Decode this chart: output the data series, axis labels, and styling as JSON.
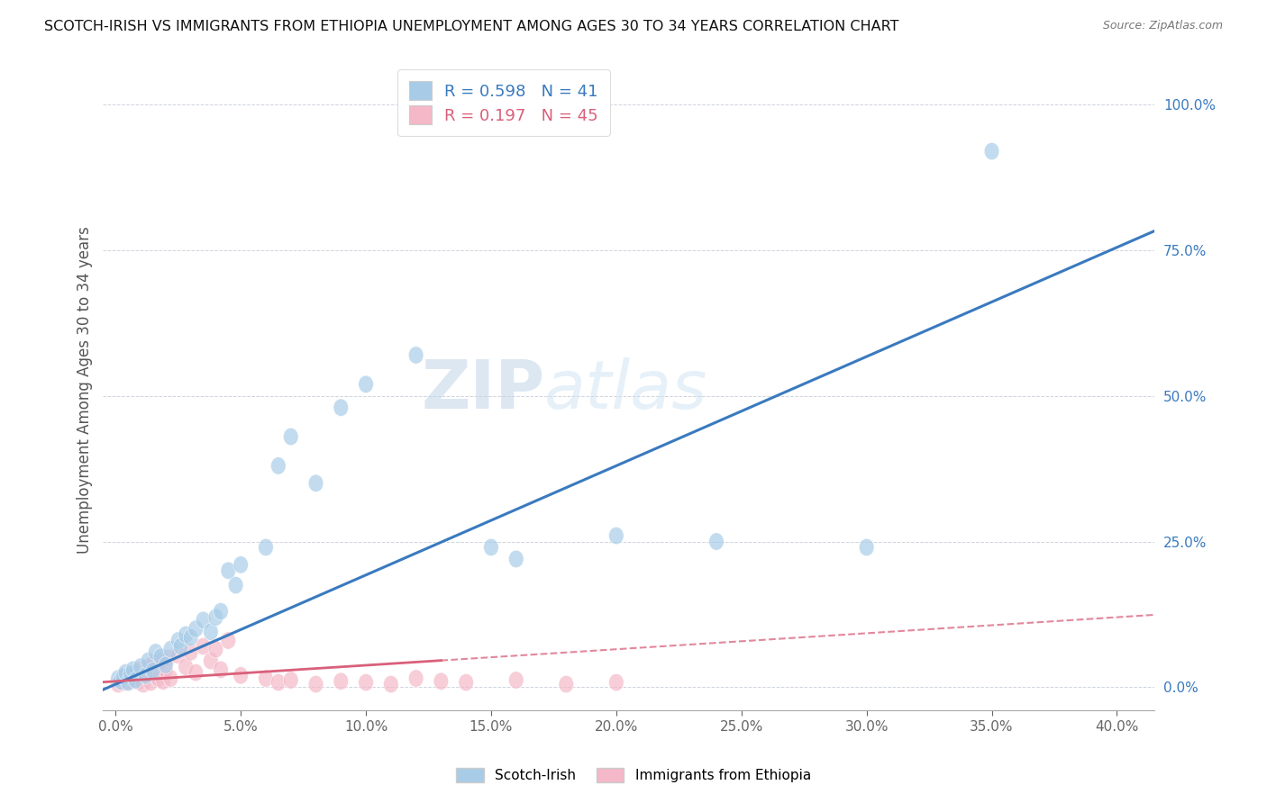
{
  "title": "SCOTCH-IRISH VS IMMIGRANTS FROM ETHIOPIA UNEMPLOYMENT AMONG AGES 30 TO 34 YEARS CORRELATION CHART",
  "source": "Source: ZipAtlas.com",
  "ylabel": "Unemployment Among Ages 30 to 34 years",
  "xlabel_ticks": [
    0.0,
    0.05,
    0.1,
    0.15,
    0.2,
    0.25,
    0.3,
    0.35,
    0.4
  ],
  "ylabel_ticks": [
    0.0,
    0.25,
    0.5,
    0.75,
    1.0
  ],
  "xlim": [
    -0.005,
    0.415
  ],
  "ylim": [
    -0.04,
    1.06
  ],
  "blue_R": 0.598,
  "blue_N": 41,
  "pink_R": 0.197,
  "pink_N": 45,
  "blue_color": "#a8cce8",
  "pink_color": "#f4b8c8",
  "blue_line_color": "#3a7abf",
  "pink_line_color": "#d9607a",
  "blue_scatter": [
    [
      0.001,
      0.015
    ],
    [
      0.002,
      0.01
    ],
    [
      0.003,
      0.018
    ],
    [
      0.004,
      0.025
    ],
    [
      0.005,
      0.008
    ],
    [
      0.006,
      0.022
    ],
    [
      0.007,
      0.03
    ],
    [
      0.008,
      0.012
    ],
    [
      0.01,
      0.035
    ],
    [
      0.012,
      0.02
    ],
    [
      0.013,
      0.045
    ],
    [
      0.015,
      0.028
    ],
    [
      0.016,
      0.06
    ],
    [
      0.018,
      0.052
    ],
    [
      0.02,
      0.038
    ],
    [
      0.022,
      0.065
    ],
    [
      0.025,
      0.08
    ],
    [
      0.026,
      0.07
    ],
    [
      0.028,
      0.09
    ],
    [
      0.03,
      0.085
    ],
    [
      0.032,
      0.1
    ],
    [
      0.035,
      0.115
    ],
    [
      0.038,
      0.095
    ],
    [
      0.04,
      0.12
    ],
    [
      0.042,
      0.13
    ],
    [
      0.045,
      0.2
    ],
    [
      0.048,
      0.175
    ],
    [
      0.05,
      0.21
    ],
    [
      0.06,
      0.24
    ],
    [
      0.065,
      0.38
    ],
    [
      0.07,
      0.43
    ],
    [
      0.08,
      0.35
    ],
    [
      0.09,
      0.48
    ],
    [
      0.1,
      0.52
    ],
    [
      0.12,
      0.57
    ],
    [
      0.15,
      0.24
    ],
    [
      0.16,
      0.22
    ],
    [
      0.2,
      0.26
    ],
    [
      0.24,
      0.25
    ],
    [
      0.3,
      0.24
    ],
    [
      0.35,
      0.92
    ]
  ],
  "pink_scatter": [
    [
      0.001,
      0.005
    ],
    [
      0.002,
      0.012
    ],
    [
      0.003,
      0.008
    ],
    [
      0.004,
      0.018
    ],
    [
      0.005,
      0.01
    ],
    [
      0.006,
      0.02
    ],
    [
      0.007,
      0.015
    ],
    [
      0.008,
      0.025
    ],
    [
      0.009,
      0.01
    ],
    [
      0.01,
      0.03
    ],
    [
      0.011,
      0.005
    ],
    [
      0.012,
      0.022
    ],
    [
      0.013,
      0.035
    ],
    [
      0.014,
      0.008
    ],
    [
      0.015,
      0.04
    ],
    [
      0.016,
      0.025
    ],
    [
      0.017,
      0.015
    ],
    [
      0.018,
      0.045
    ],
    [
      0.019,
      0.01
    ],
    [
      0.02,
      0.03
    ],
    [
      0.021,
      0.05
    ],
    [
      0.022,
      0.015
    ],
    [
      0.025,
      0.055
    ],
    [
      0.028,
      0.035
    ],
    [
      0.03,
      0.06
    ],
    [
      0.032,
      0.025
    ],
    [
      0.035,
      0.07
    ],
    [
      0.038,
      0.045
    ],
    [
      0.04,
      0.065
    ],
    [
      0.042,
      0.03
    ],
    [
      0.045,
      0.08
    ],
    [
      0.05,
      0.02
    ],
    [
      0.06,
      0.015
    ],
    [
      0.065,
      0.008
    ],
    [
      0.07,
      0.012
    ],
    [
      0.08,
      0.005
    ],
    [
      0.09,
      0.01
    ],
    [
      0.1,
      0.008
    ],
    [
      0.11,
      0.005
    ],
    [
      0.12,
      0.015
    ],
    [
      0.13,
      0.01
    ],
    [
      0.14,
      0.008
    ],
    [
      0.16,
      0.012
    ],
    [
      0.18,
      0.005
    ],
    [
      0.2,
      0.008
    ]
  ],
  "legend_labels": [
    "Scotch-Irish",
    "Immigrants from Ethiopia"
  ],
  "watermark": "ZIPatlas",
  "background_color": "#ffffff",
  "grid_color": "#b0b8c8"
}
